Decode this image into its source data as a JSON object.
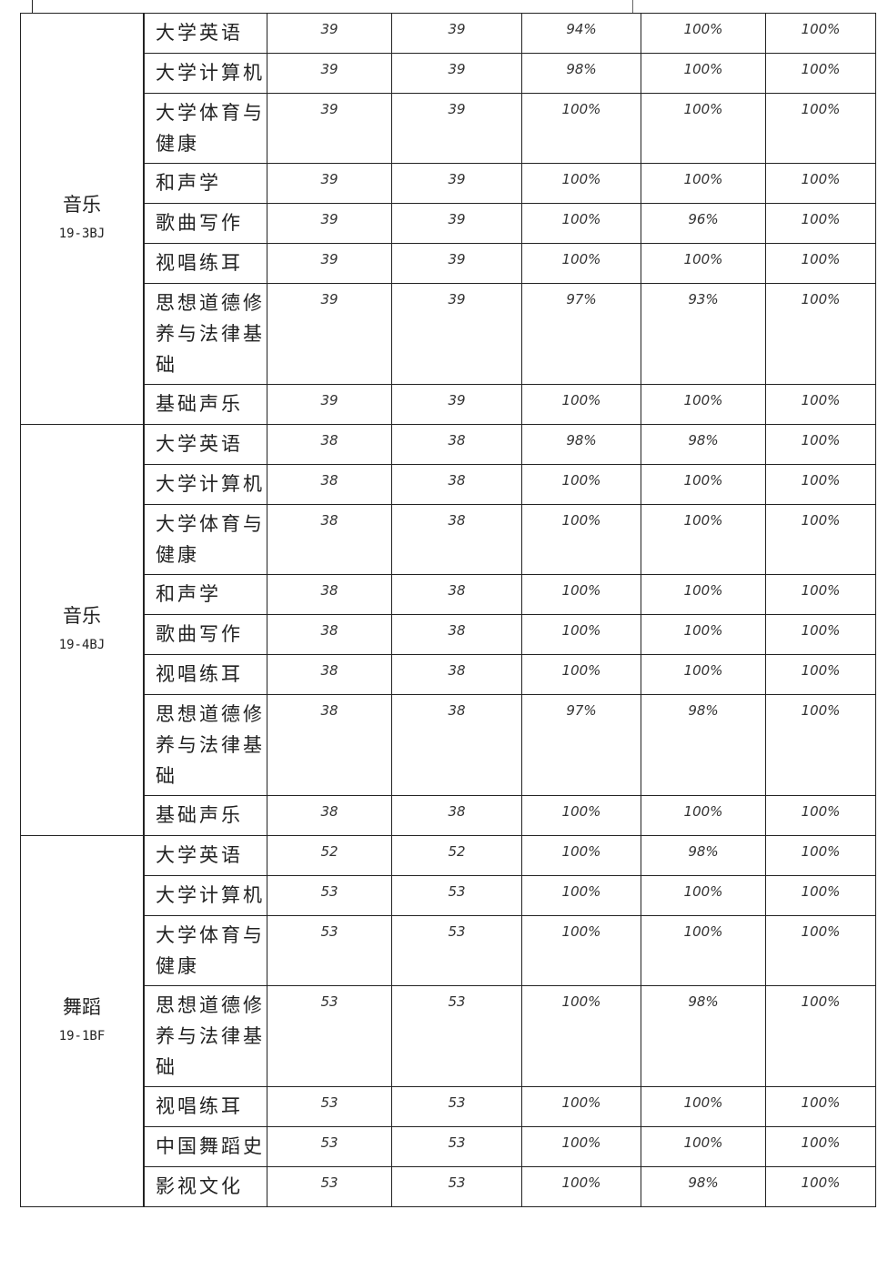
{
  "groups": [
    {
      "major": "音乐",
      "class": "19-3BJ",
      "rows": [
        [
          "大学英语",
          39,
          39,
          "94%",
          "100%",
          "100%"
        ],
        [
          "大学计算机",
          39,
          39,
          "98%",
          "100%",
          "100%"
        ],
        [
          "大学体育与健康",
          39,
          39,
          "100%",
          "100%",
          "100%"
        ],
        [
          "和声学",
          39,
          39,
          "100%",
          "100%",
          "100%"
        ],
        [
          "歌曲写作",
          39,
          39,
          "100%",
          "96%",
          "100%"
        ],
        [
          "视唱练耳",
          39,
          39,
          "100%",
          "100%",
          "100%"
        ],
        [
          "思想道德修养与法律基础",
          39,
          39,
          "97%",
          "93%",
          "100%"
        ],
        [
          "基础声乐",
          39,
          39,
          "100%",
          "100%",
          "100%"
        ]
      ]
    },
    {
      "major": "音乐",
      "class": "19-4BJ",
      "rows": [
        [
          "大学英语",
          38,
          38,
          "98%",
          "98%",
          "100%"
        ],
        [
          "大学计算机",
          38,
          38,
          "100%",
          "100%",
          "100%"
        ],
        [
          "大学体育与健康",
          38,
          38,
          "100%",
          "100%",
          "100%"
        ],
        [
          "和声学",
          38,
          38,
          "100%",
          "100%",
          "100%"
        ],
        [
          "歌曲写作",
          38,
          38,
          "100%",
          "100%",
          "100%"
        ],
        [
          "视唱练耳",
          38,
          38,
          "100%",
          "100%",
          "100%"
        ],
        [
          "思想道德修养与法律基础",
          38,
          38,
          "97%",
          "98%",
          "100%"
        ],
        [
          "基础声乐",
          38,
          38,
          "100%",
          "100%",
          "100%"
        ]
      ]
    },
    {
      "major": "舞蹈",
      "class": "19-1BF",
      "rows": [
        [
          "大学英语",
          52,
          52,
          "100%",
          "98%",
          "100%"
        ],
        [
          "大学计算机",
          53,
          53,
          "100%",
          "100%",
          "100%"
        ],
        [
          "大学体育与健康",
          53,
          53,
          "100%",
          "100%",
          "100%"
        ],
        [
          "思想道德修养与法律基础",
          53,
          53,
          "100%",
          "98%",
          "100%"
        ],
        [
          "视唱练耳",
          53,
          53,
          "100%",
          "100%",
          "100%"
        ],
        [
          "中国舞蹈史",
          53,
          53,
          "100%",
          "100%",
          "100%"
        ],
        [
          "影视文化",
          53,
          53,
          "100%",
          "98%",
          "100%"
        ]
      ]
    }
  ]
}
